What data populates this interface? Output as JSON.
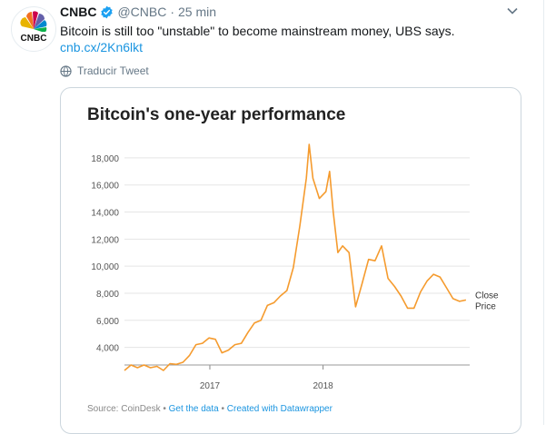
{
  "tweet": {
    "name": "CNBC",
    "handle": "@CNBC",
    "separator": "·",
    "time": "25 min",
    "avatar_text": "CNBC",
    "text": "Bitcoin is still too \"unstable\" to become mainstream money, UBS says.",
    "link": "cnb.cx/2Kn6lkt",
    "translate_label": "Traducir Tweet",
    "colors": {
      "link": "#1b95e0",
      "muted": "#657786",
      "verified": "#1da1f2"
    }
  },
  "card": {
    "source_prefix": "Source: CoinDesk",
    "sep1": " • ",
    "get_data": "Get the data",
    "sep2": " • ",
    "created_with": "Created with Datawrapper"
  },
  "chart_data": {
    "type": "line",
    "title": "Bitcoin's one-year performance",
    "series_label": [
      "Close",
      "Price"
    ],
    "line_color": "#f59b2e",
    "yticks": [
      4000,
      6000,
      8000,
      10000,
      12000,
      14000,
      16000,
      18000
    ],
    "ytick_labels": [
      "4,000",
      "6,000",
      "8,000",
      "10,000",
      "12,000",
      "14,000",
      "16,000",
      "18,000"
    ],
    "xtick_labels": [
      "2017",
      "2018"
    ],
    "xtick_dates": [
      "2017-09-01",
      "2018-01-01"
    ],
    "ylim": [
      2700,
      19400
    ],
    "xlim": [
      "2017-06-01",
      "2018-06-08"
    ],
    "grid": true,
    "x": [
      "2017-06-01",
      "2017-06-08",
      "2017-06-15",
      "2017-06-22",
      "2017-06-29",
      "2017-07-06",
      "2017-07-13",
      "2017-07-20",
      "2017-07-27",
      "2017-08-03",
      "2017-08-10",
      "2017-08-17",
      "2017-08-24",
      "2017-08-31",
      "2017-09-07",
      "2017-09-14",
      "2017-09-21",
      "2017-09-28",
      "2017-10-05",
      "2017-10-12",
      "2017-10-19",
      "2017-10-26",
      "2017-11-02",
      "2017-11-09",
      "2017-11-16",
      "2017-11-23",
      "2017-11-30",
      "2017-12-07",
      "2017-12-14",
      "2017-12-17",
      "2017-12-21",
      "2017-12-28",
      "2018-01-04",
      "2018-01-08",
      "2018-01-12",
      "2018-01-17",
      "2018-01-22",
      "2018-01-29",
      "2018-02-05",
      "2018-02-12",
      "2018-02-19",
      "2018-02-26",
      "2018-03-05",
      "2018-03-12",
      "2018-03-19",
      "2018-03-26",
      "2018-04-02",
      "2018-04-09",
      "2018-04-16",
      "2018-04-23",
      "2018-04-30",
      "2018-05-07",
      "2018-05-14",
      "2018-05-21",
      "2018-05-28",
      "2018-06-04"
    ],
    "y": [
      2300,
      2700,
      2500,
      2700,
      2500,
      2600,
      2300,
      2800,
      2750,
      2900,
      3400,
      4200,
      4300,
      4700,
      4600,
      3600,
      3800,
      4200,
      4300,
      5100,
      5800,
      6000,
      7100,
      7300,
      7800,
      8200,
      9900,
      13000,
      16500,
      19000,
      16500,
      15000,
      15500,
      17000,
      14000,
      11000,
      11500,
      11000,
      7000,
      8700,
      10500,
      10400,
      11500,
      9100,
      8500,
      7800,
      6900,
      6900,
      8100,
      8900,
      9400,
      9200,
      8400,
      7600,
      7400,
      7500
    ]
  }
}
